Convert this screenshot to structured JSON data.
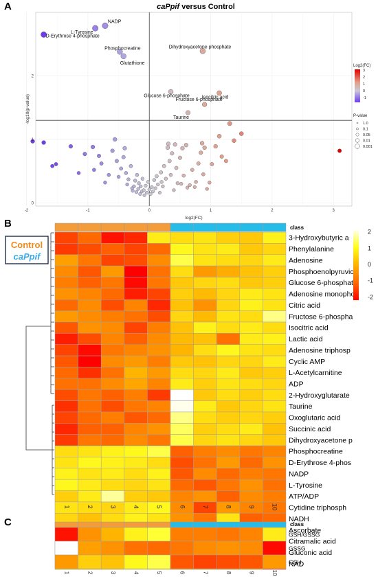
{
  "panels": {
    "a": "A",
    "b": "B",
    "c": "C"
  },
  "chart_data": [
    {
      "type": "scatter",
      "title_italic": "caPpif",
      "title_rest": " versus Control",
      "xlabel": "log2(FC)",
      "ylabel": "-log10(p-value)",
      "xlim": [
        -1.85,
        3.3
      ],
      "ylim": [
        -0.05,
        3.0
      ],
      "xticks": [
        "-2",
        "-1",
        "0",
        "1",
        "2",
        "3"
      ],
      "xtick_values": [
        -2,
        -1,
        0,
        1,
        2,
        3
      ],
      "yticks": [
        "0",
        "1",
        "2"
      ],
      "ytick_values": [
        0,
        1,
        2
      ],
      "threshold_y": 1.3,
      "threshold_x": 0,
      "grid": true,
      "color_legend": {
        "title": "Log2(FC)",
        "ticks": [
          "3",
          "2",
          "1",
          "0",
          "-1"
        ],
        "tick_values": [
          3,
          2,
          1,
          0,
          -1
        ],
        "range": [
          -1.7,
          3.1
        ]
      },
      "size_legend": {
        "title": "P-value",
        "labels": [
          "1.0",
          "0.1",
          "0.05",
          "0.01",
          "0.001"
        ]
      },
      "labeled_points": [
        {
          "name": "NADP",
          "x": -0.72,
          "y": 2.79
        },
        {
          "name": "L-Tyrosine",
          "x": -0.88,
          "y": 2.75
        },
        {
          "name": "D-Erythrose 4-phosphate",
          "x": -1.72,
          "y": 2.65
        },
        {
          "name": "Phosphocreatine",
          "x": -0.48,
          "y": 2.38
        },
        {
          "name": "Glutathione",
          "x": -0.42,
          "y": 2.31
        },
        {
          "name": "Dihydroxyacetone phosphate",
          "x": 0.87,
          "y": 2.39
        },
        {
          "name": "Glucose 6-phosphate",
          "x": 0.35,
          "y": 1.75
        },
        {
          "name": "Isocitric acid",
          "x": 1.14,
          "y": 1.73
        },
        {
          "name": "Fructose 6-phosphate",
          "x": 0.9,
          "y": 1.55
        },
        {
          "name": "Taurine",
          "x": 0.63,
          "y": 1.42
        }
      ],
      "points": [
        [
          -1.9,
          0.97
        ],
        [
          -1.72,
          0.95
        ],
        [
          -1.52,
          0.61
        ],
        [
          -1.58,
          0.58
        ],
        [
          -1.15,
          0.47
        ],
        [
          -1.28,
          0.89
        ],
        [
          -1.05,
          0.77
        ],
        [
          -0.92,
          0.88
        ],
        [
          -0.9,
          0.52
        ],
        [
          -0.82,
          0.74
        ],
        [
          -0.78,
          0.62
        ],
        [
          -0.72,
          0.32
        ],
        [
          -0.66,
          0.44
        ],
        [
          -0.6,
          0.82
        ],
        [
          -0.56,
          1.0
        ],
        [
          -0.53,
          0.66
        ],
        [
          -0.5,
          0.41
        ],
        [
          -0.46,
          0.54
        ],
        [
          -0.42,
          0.72
        ],
        [
          -0.4,
          0.86
        ],
        [
          -0.38,
          0.47
        ],
        [
          -0.36,
          0.29
        ],
        [
          -0.34,
          0.37
        ],
        [
          -0.3,
          0.58
        ],
        [
          -0.28,
          0.23
        ],
        [
          -0.27,
          0.19
        ],
        [
          -0.25,
          0.26
        ],
        [
          -0.23,
          0.35
        ],
        [
          -0.21,
          0.17
        ],
        [
          -0.2,
          0.44
        ],
        [
          -0.18,
          0.22
        ],
        [
          -0.17,
          0.31
        ],
        [
          -0.15,
          0.14
        ],
        [
          -0.14,
          0.26
        ],
        [
          -0.12,
          0.18
        ],
        [
          -0.11,
          0.38
        ],
        [
          -0.09,
          0.2
        ],
        [
          -0.08,
          0.12
        ],
        [
          -0.06,
          0.27
        ],
        [
          -0.04,
          0.16
        ],
        [
          -0.02,
          0.33
        ],
        [
          0.0,
          0.21
        ],
        [
          0.02,
          0.14
        ],
        [
          0.04,
          0.25
        ],
        [
          0.06,
          0.18
        ],
        [
          0.08,
          0.36
        ],
        [
          0.1,
          0.23
        ],
        [
          0.12,
          0.42
        ],
        [
          0.14,
          0.29
        ],
        [
          0.17,
          0.16
        ],
        [
          0.19,
          0.48
        ],
        [
          0.2,
          0.33
        ],
        [
          0.22,
          0.26
        ],
        [
          0.24,
          0.58
        ],
        [
          0.27,
          0.38
        ],
        [
          0.3,
          0.87
        ],
        [
          0.31,
          0.93
        ],
        [
          0.33,
          0.66
        ],
        [
          0.35,
          0.44
        ],
        [
          0.37,
          0.78
        ],
        [
          0.4,
          0.2
        ],
        [
          0.42,
          0.92
        ],
        [
          0.44,
          0.55
        ],
        [
          0.46,
          0.31
        ],
        [
          0.5,
          0.71
        ],
        [
          0.52,
          0.3
        ],
        [
          0.54,
          0.86
        ],
        [
          0.56,
          0.43
        ],
        [
          0.6,
          0.91
        ],
        [
          0.62,
          0.24
        ],
        [
          0.66,
          0.28
        ],
        [
          0.7,
          0.52
        ],
        [
          0.74,
          0.25
        ],
        [
          0.76,
          0.33
        ],
        [
          0.8,
          0.62
        ],
        [
          0.84,
          0.79
        ],
        [
          0.86,
          0.94
        ],
        [
          0.88,
          0.45
        ],
        [
          0.9,
          0.87
        ],
        [
          0.94,
          0.22
        ],
        [
          0.98,
          0.32
        ],
        [
          1.02,
          0.61
        ],
        [
          1.08,
          0.89
        ],
        [
          1.14,
          1.05
        ],
        [
          1.18,
          0.73
        ],
        [
          1.25,
          0.66
        ],
        [
          1.31,
          1.25
        ],
        [
          1.38,
          0.98
        ],
        [
          1.5,
          1.09
        ],
        [
          3.1,
          0.82
        ]
      ]
    },
    {
      "type": "heatmap",
      "class_label": "class",
      "legend_group_1": "Control",
      "legend_group_2": "caPpif",
      "group_colors": {
        "Control": "#F39C3B",
        "caPpif": "#27BCE8"
      },
      "columns": [
        "1",
        "2",
        "3",
        "4",
        "5",
        "6",
        "7",
        "8",
        "9",
        "10"
      ],
      "column_groups": [
        "Control",
        "Control",
        "Control",
        "Control",
        "Control",
        "caPpif",
        "caPpif",
        "caPpif",
        "caPpif",
        "caPpif"
      ],
      "legend_ticks": [
        "2",
        "1",
        "0",
        "-1",
        "-2"
      ],
      "legend_tick_values": [
        2,
        1,
        0,
        -1,
        -2
      ],
      "scale_range": [
        -2.2,
        2.2
      ],
      "rows": [
        {
          "name": "3-Hydroxybutyric a",
          "values": [
            -1.5,
            -1.1,
            -2.0,
            -1.8,
            0.8,
            0.6,
            0.7,
            0.4,
            0.3,
            0.9
          ]
        },
        {
          "name": "Phenylalanine",
          "values": [
            -1.6,
            -1.4,
            -1.2,
            -1.5,
            -1.1,
            1.0,
            0.7,
            0.8,
            0.3,
            0.5
          ]
        },
        {
          "name": "Adenosine",
          "values": [
            -0.3,
            -0.9,
            -1.5,
            -1.4,
            -0.6,
            1.3,
            0.7,
            0.6,
            0.5,
            0.8
          ]
        },
        {
          "name": "Phosphoenolpyruvic",
          "values": [
            -0.6,
            -1.3,
            -0.4,
            -2.2,
            -1.0,
            0.6,
            -0.4,
            -0.1,
            0.2,
            0.4
          ]
        },
        {
          "name": "Glucose 6-phosphat",
          "values": [
            -0.8,
            -1.2,
            -0.9,
            -2.1,
            -0.9,
            0.3,
            0.5,
            0.6,
            0.3,
            0.4
          ]
        },
        {
          "name": "Adenosine monophos",
          "values": [
            -0.5,
            -0.7,
            -1.1,
            -1.9,
            -1.5,
            0.4,
            0.1,
            0.5,
            0.8,
            0.7
          ]
        },
        {
          "name": "Citric acid",
          "values": [
            -1.1,
            -0.6,
            -1.4,
            -0.7,
            -1.8,
            0.2,
            -0.5,
            0.5,
            0.9,
            0.7
          ]
        },
        {
          "name": "Fructose 6-phospha",
          "values": [
            -0.4,
            -0.6,
            -0.8,
            -1.0,
            -1.4,
            0.5,
            0.1,
            0.7,
            0.6,
            1.6
          ]
        },
        {
          "name": "Isocitric acid",
          "values": [
            -1.3,
            -0.5,
            -0.6,
            -1.5,
            -0.8,
            0.2,
            0.9,
            0.6,
            0.8,
            0.6
          ]
        },
        {
          "name": "Lactic acid",
          "values": [
            -1.9,
            -1.4,
            -0.7,
            -1.2,
            -0.6,
            0.1,
            0.2,
            -1.0,
            0.8,
            0.9
          ]
        },
        {
          "name": "Adenosine triphosp",
          "values": [
            -1.5,
            -2.1,
            -0.9,
            -0.7,
            -0.5,
            0.0,
            0.6,
            1.0,
            0.7,
            0.6
          ]
        },
        {
          "name": "Cyclic AMP",
          "values": [
            -1.3,
            -2.2,
            -0.6,
            -0.4,
            -0.8,
            0.3,
            0.2,
            0.5,
            0.5,
            0.8
          ]
        },
        {
          "name": "L-Acetylcarnitine",
          "values": [
            -1.1,
            -1.7,
            -1.0,
            0.0,
            -0.4,
            0.6,
            0.5,
            0.8,
            0.3,
            0.4
          ]
        },
        {
          "name": "ADP",
          "values": [
            -1.0,
            -1.0,
            -0.6,
            -0.2,
            -0.7,
            0.8,
            0.4,
            0.7,
            0.6,
            0.5
          ]
        },
        {
          "name": "2-Hydroxyglutarate",
          "values": [
            -1.4,
            -0.9,
            -1.2,
            -0.8,
            -1.6,
            2.2,
            0.3,
            0.6,
            0.4,
            0.6
          ]
        },
        {
          "name": "Taurine",
          "values": [
            -1.7,
            -1.0,
            -1.4,
            -0.9,
            -0.7,
            2.1,
            0.8,
            0.3,
            0.5,
            0.7
          ]
        },
        {
          "name": "Oxoglutaric acid",
          "values": [
            -1.5,
            -1.1,
            -0.8,
            -1.3,
            -1.1,
            1.6,
            0.6,
            0.4,
            0.5,
            0.4
          ]
        },
        {
          "name": "Succinic acid",
          "values": [
            -1.8,
            -1.2,
            -1.2,
            -0.7,
            -0.5,
            1.4,
            0.4,
            0.6,
            0.8,
            0.2
          ]
        },
        {
          "name": "Dihydroxyacetone p",
          "values": [
            -1.6,
            -0.9,
            -1.1,
            -0.6,
            -0.9,
            1.3,
            0.5,
            0.7,
            0.5,
            0.3
          ]
        },
        {
          "name": "Phosphocreatine",
          "values": [
            0.6,
            0.7,
            0.9,
            1.0,
            1.3,
            -1.2,
            -0.8,
            -0.6,
            -0.9,
            -0.7
          ]
        },
        {
          "name": "D-Erythrose 4-phos",
          "values": [
            0.7,
            1.0,
            0.9,
            0.8,
            0.6,
            -1.4,
            -1.0,
            -0.4,
            -1.1,
            -0.5
          ]
        },
        {
          "name": "NADP",
          "values": [
            0.9,
            0.7,
            0.8,
            0.6,
            0.9,
            -1.3,
            -0.6,
            -1.1,
            -0.8,
            -0.9
          ]
        },
        {
          "name": "L-Tyrosine",
          "values": [
            1.0,
            0.8,
            0.6,
            0.5,
            0.7,
            -1.1,
            -1.3,
            -0.9,
            -0.5,
            -1.0
          ]
        },
        {
          "name": "ATP/ADP",
          "values": [
            0.4,
            0.8,
            1.7,
            0.4,
            0.3,
            -0.7,
            -0.5,
            -1.2,
            -0.6,
            -0.8
          ]
        },
        {
          "name": "Cytidine triphosph",
          "values": [
            0.7,
            0.6,
            0.5,
            0.8,
            1.0,
            -0.6,
            -1.5,
            -0.4,
            -0.7,
            -0.9
          ]
        },
        {
          "name": "NADH",
          "values": [
            0.5,
            0.2,
            0.6,
            0.9,
            0.7,
            -0.5,
            -0.9,
            0.7,
            -1.2,
            -1.1
          ]
        },
        {
          "name": "Ascorbate",
          "values": [
            1.6,
            0.5,
            0.4,
            0.7,
            0.5,
            -0.4,
            -0.8,
            -0.6,
            -0.5,
            -1.3
          ]
        },
        {
          "name": "Citramalic acid",
          "values": [
            0.3,
            0.4,
            0.7,
            1.0,
            0.6,
            0.1,
            -0.3,
            -0.5,
            -0.7,
            -1.6
          ]
        },
        {
          "name": "Gluconic acid",
          "values": [
            0.4,
            0.7,
            0.5,
            1.1,
            0.4,
            -0.2,
            -0.1,
            -0.5,
            -0.3,
            -1.7
          ]
        },
        {
          "name": "NAD",
          "values": [
            0.6,
            0.3,
            0.5,
            1.3,
            1.0,
            -0.5,
            -0.4,
            -0.6,
            -0.3,
            -1.8
          ]
        }
      ]
    },
    {
      "type": "heatmap",
      "class_label": "class",
      "columns": [
        "1",
        "2",
        "3",
        "4",
        "5",
        "6",
        "7",
        "8",
        "9",
        "10"
      ],
      "column_groups": [
        "Control",
        "Control",
        "Control",
        "Control",
        "Control",
        "caPpif",
        "caPpif",
        "caPpif",
        "caPpif",
        "caPpif"
      ],
      "scale_range": [
        -2.2,
        2.2
      ],
      "rows": [
        {
          "name": "GSH/GSSG",
          "values": [
            -2.0,
            -0.5,
            0.0,
            0.9,
            1.2,
            -0.8,
            -0.8,
            -0.9,
            -0.7,
            0.8
          ]
        },
        {
          "name": "GSSG",
          "values": [
            2.3,
            -0.3,
            -0.5,
            -1.0,
            -1.1,
            -0.9,
            -0.6,
            -0.5,
            -0.6,
            -2.1
          ]
        },
        {
          "name": "GSH",
          "values": [
            -0.4,
            0.4,
            0.2,
            1.0,
            1.3,
            -1.3,
            -1.5,
            -1.4,
            -1.3,
            -0.4
          ]
        }
      ]
    }
  ]
}
